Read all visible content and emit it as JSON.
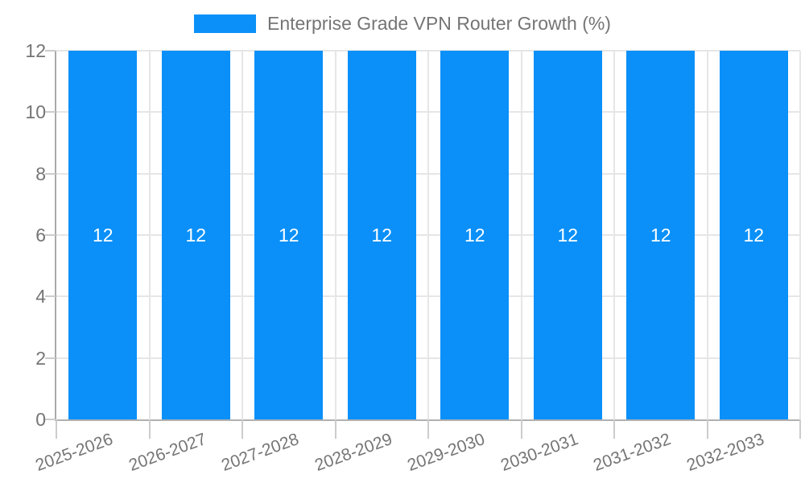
{
  "legend": {
    "label": "Enterprise Grade VPN Router Growth (%)"
  },
  "chart_data": {
    "type": "bar",
    "title": "Enterprise Grade VPN Router Growth (%)",
    "categories": [
      "2025-2026",
      "2026-2027",
      "2027-2028",
      "2028-2029",
      "2029-2030",
      "2030-2031",
      "2031-2032",
      "2032-2033"
    ],
    "values": [
      12,
      12,
      12,
      12,
      12,
      12,
      12,
      12
    ],
    "bar_value_labels": [
      "12",
      "12",
      "12",
      "12",
      "12",
      "12",
      "12",
      "12"
    ],
    "xlabel": "",
    "ylabel": "",
    "ylim": [
      0,
      12
    ],
    "yticks": [
      0,
      2,
      4,
      6,
      8,
      10,
      12
    ],
    "grid": true,
    "legend_position": "top-center",
    "colors": {
      "bar": "#0a90f8",
      "bar_label": "#ffffff",
      "axis_text": "#757575",
      "grid_line": "#e6e6e6",
      "axis_line": "#ababab",
      "tick_line": "#cccccc",
      "background": "#ffffff"
    }
  }
}
